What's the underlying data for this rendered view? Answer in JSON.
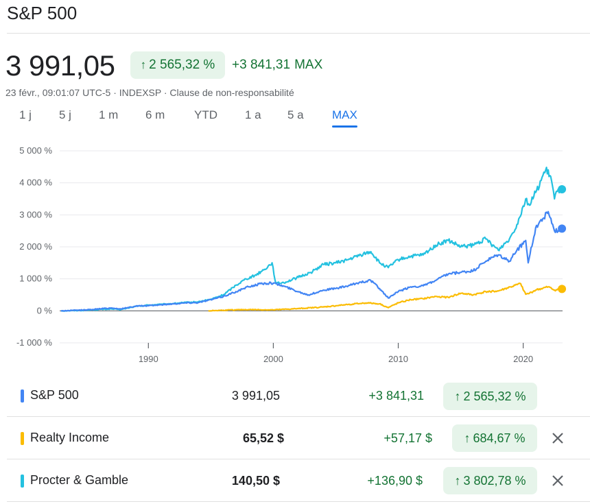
{
  "page": {
    "title": "S&P 500",
    "price": "3 991,05",
    "pct_change": "2 565,32 %",
    "abs_change": "+3 841,31",
    "period_label": "MAX",
    "subline": "23 févr., 09:01:07 UTC-5 · INDEXSP · Clause de non-responsabilité"
  },
  "ranges": [
    "1 j",
    "5 j",
    "1 m",
    "6 m",
    "YTD",
    "1 a",
    "5 a",
    "MAX"
  ],
  "active_range": "MAX",
  "colors": {
    "sp500": "#4285f4",
    "realty": "#fbbc04",
    "pg": "#24c1e0",
    "positive": "#137333",
    "positive_bg": "#e6f4ea",
    "accent": "#1a73e8"
  },
  "rows": [
    {
      "name": "S&P 500",
      "value": "3 991,05",
      "change": "+3 841,31",
      "pct": "2 565,32 %",
      "removable": false
    },
    {
      "name": "Realty Income",
      "value": "65,52 $",
      "change": "+57,17 $",
      "pct": "684,67 %",
      "removable": true
    },
    {
      "name": "Procter & Gamble",
      "value": "140,50 $",
      "change": "+136,90 $",
      "pct": "3 802,78 %",
      "removable": true
    }
  ],
  "icons": {
    "up_arrow": "arrow-up-icon",
    "remove": "close-icon"
  },
  "chart_data": {
    "type": "line",
    "ylim": [
      -1000,
      5000
    ],
    "yticks": [
      5000,
      4000,
      3000,
      2000,
      1000,
      0,
      -1000
    ],
    "ytick_labels": [
      "5 000 %",
      "4 000 %",
      "3 000 %",
      "2 000 %",
      "1 000 %",
      "0 %",
      "-1 000 %"
    ],
    "xlim": [
      1982.9,
      2023.15
    ],
    "xticks": [
      1990,
      2000,
      2010,
      2020
    ],
    "xtick_labels": [
      "1990",
      "2000",
      "2010",
      "2020"
    ],
    "grid": true,
    "series": [
      {
        "name": "Procter & Gamble",
        "color": "#24c1e0",
        "x": [
          1983,
          1985,
          1987,
          1987.8,
          1989,
          1990,
          1991,
          1992,
          1993,
          1994,
          1995,
          1996,
          1997,
          1997.8,
          1998.5,
          1999.3,
          1999.9,
          2000.2,
          2001,
          2002,
          2003,
          2004,
          2005,
          2006,
          2007,
          2007.8,
          2008.5,
          2009.2,
          2010,
          2011,
          2012,
          2013,
          2014,
          2015,
          2016,
          2017,
          2018,
          2018.9,
          2019.5,
          2020.2,
          2020.5,
          2021,
          2021.8,
          2022.2,
          2022.5,
          2022.8,
          2023.1
        ],
        "values": [
          0,
          20,
          60,
          40,
          140,
          180,
          200,
          230,
          260,
          280,
          360,
          500,
          800,
          1000,
          1100,
          1300,
          1500,
          850,
          900,
          1050,
          1200,
          1450,
          1500,
          1600,
          1750,
          1850,
          1500,
          1350,
          1600,
          1700,
          1750,
          2050,
          2200,
          2000,
          2050,
          2250,
          1900,
          2250,
          2700,
          3500,
          3300,
          3700,
          4400,
          4200,
          3500,
          3800,
          3800
        ]
      },
      {
        "name": "S&P 500",
        "color": "#4285f4",
        "x": [
          1983,
          1985,
          1987,
          1987.8,
          1989,
          1990,
          1991,
          1992,
          1993,
          1994,
          1995,
          1996,
          1997,
          1998,
          1999,
          2000,
          2001,
          2002,
          2002.8,
          2003.5,
          2004,
          2005,
          2006,
          2007,
          2007.8,
          2008.5,
          2009.2,
          2010,
          2011,
          2012,
          2013,
          2014,
          2015,
          2016,
          2017,
          2018,
          2018.9,
          2019.5,
          2020.2,
          2020.4,
          2021,
          2022,
          2022.5,
          2022.8,
          2023.1
        ],
        "values": [
          0,
          30,
          90,
          60,
          150,
          160,
          190,
          220,
          250,
          260,
          350,
          450,
          600,
          750,
          850,
          870,
          750,
          600,
          500,
          580,
          650,
          700,
          780,
          900,
          950,
          700,
          400,
          600,
          750,
          780,
          950,
          1150,
          1200,
          1250,
          1550,
          1750,
          1550,
          1900,
          2200,
          1500,
          2600,
          3100,
          2500,
          2500,
          2570
        ]
      },
      {
        "name": "Realty Income",
        "color": "#fbbc04",
        "x": [
          1994.8,
          1996,
          1998,
          2000,
          2002,
          2004,
          2006,
          2007.5,
          2008.5,
          2009.2,
          2010,
          2011,
          2012,
          2013,
          2014,
          2015,
          2016,
          2017,
          2018,
          2019,
          2019.8,
          2020.2,
          2020.5,
          2021,
          2022,
          2022.5,
          2023.1
        ],
        "values": [
          0,
          20,
          40,
          30,
          70,
          120,
          200,
          250,
          220,
          100,
          250,
          350,
          380,
          450,
          420,
          550,
          500,
          600,
          620,
          750,
          850,
          520,
          550,
          650,
          750,
          650,
          685
        ]
      }
    ]
  }
}
